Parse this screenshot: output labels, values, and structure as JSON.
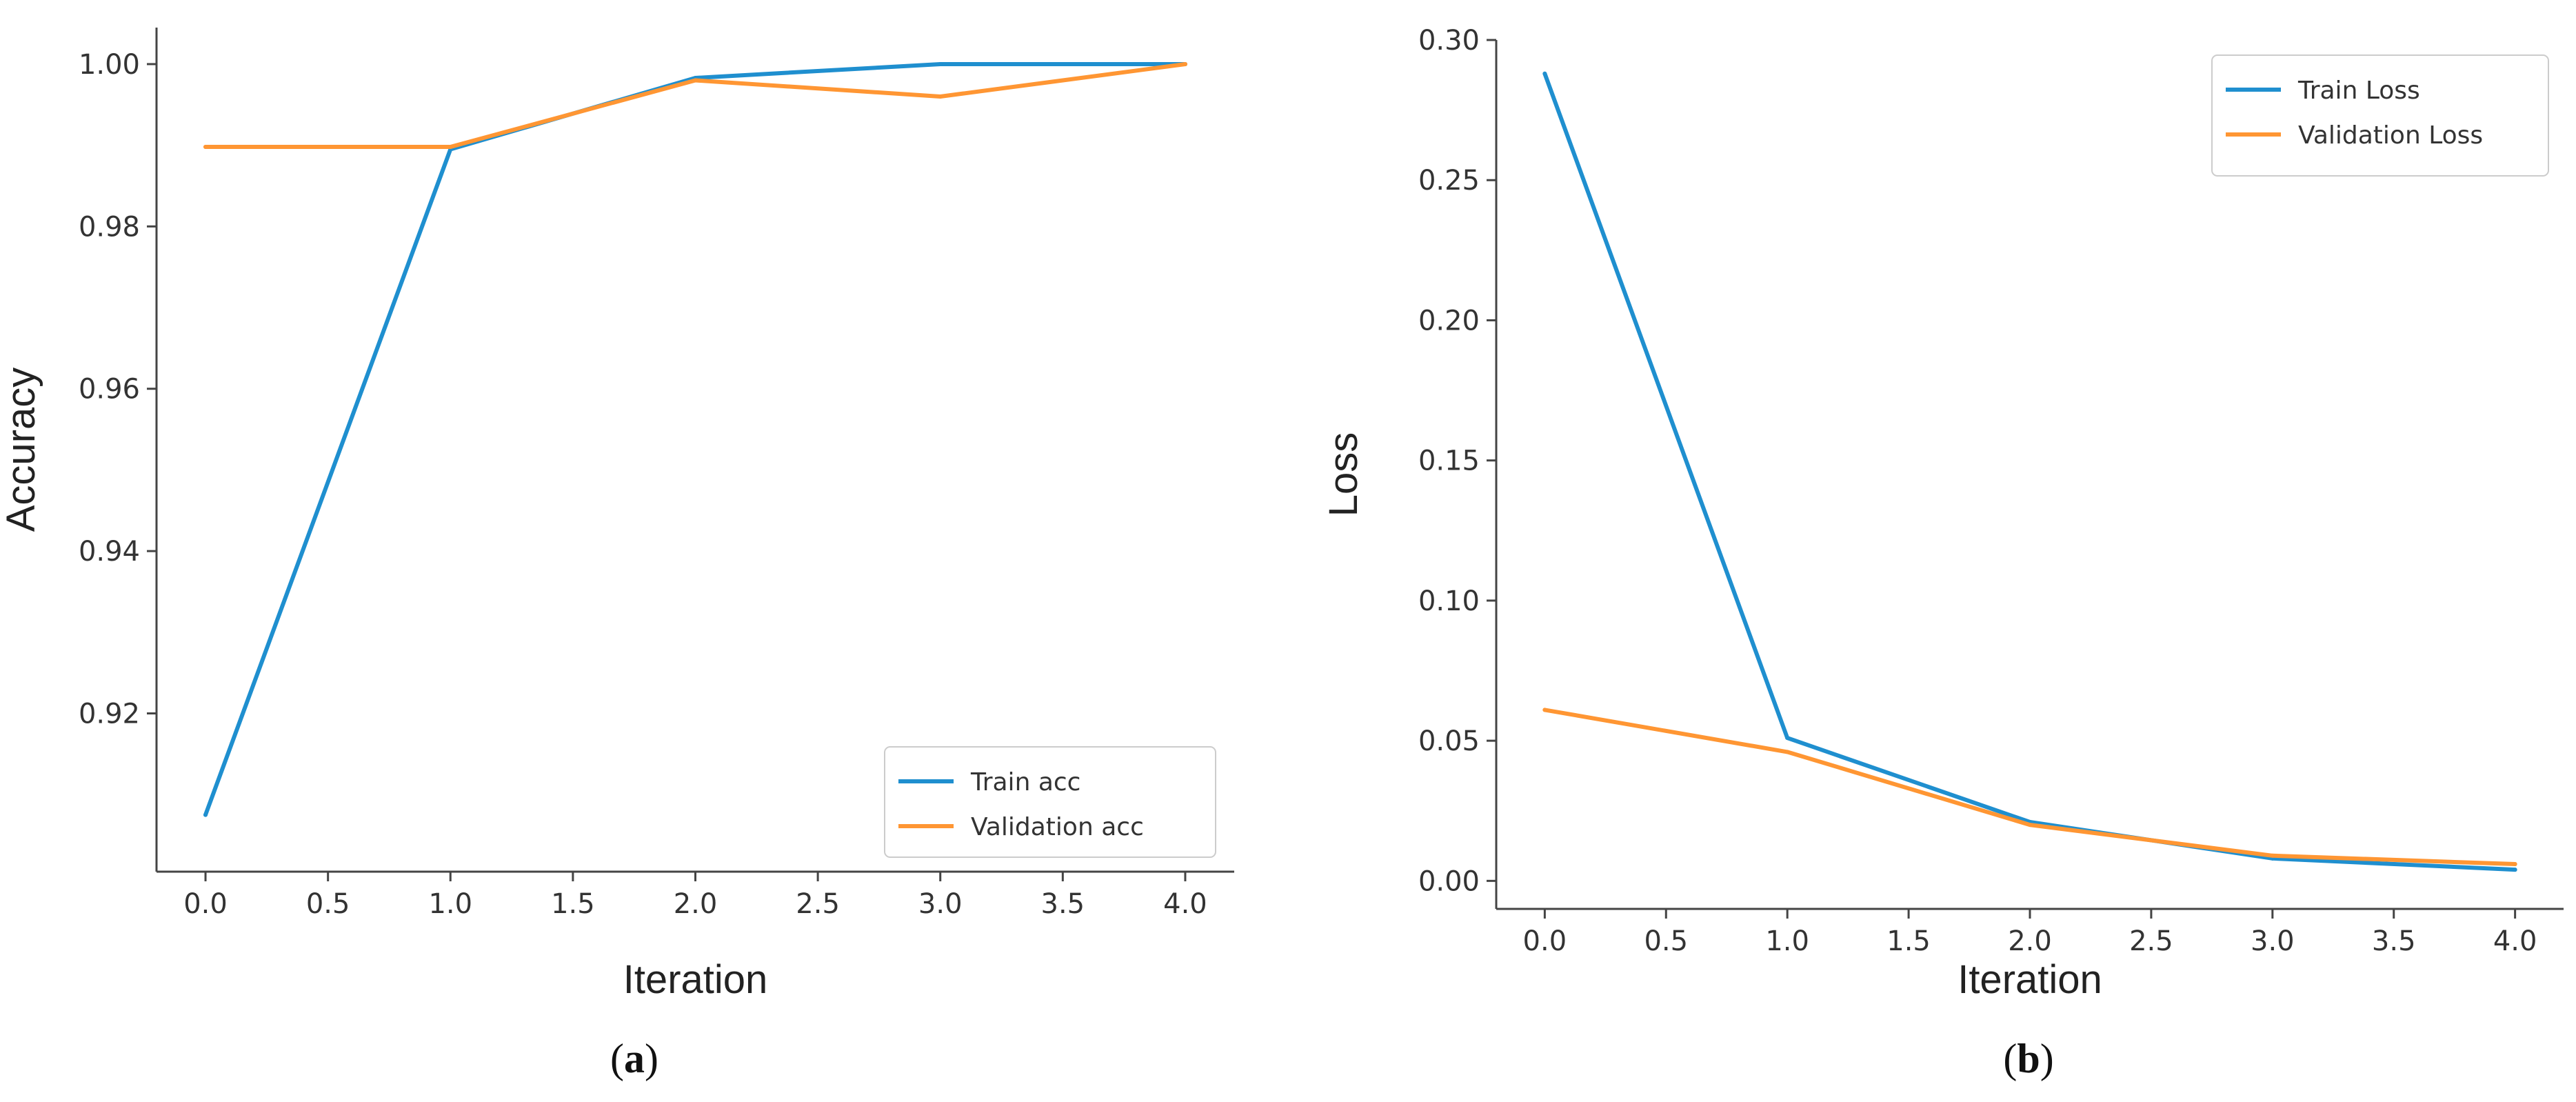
{
  "chart_data": [
    {
      "type": "line",
      "caption_letter": "a",
      "xlabel": "Iteration",
      "ylabel": "Accuracy",
      "xlim": [
        -0.2,
        4.2
      ],
      "ylim": [
        0.9005,
        1.0045
      ],
      "xticks": [
        "0.0",
        "0.5",
        "1.0",
        "1.5",
        "2.0",
        "2.5",
        "3.0",
        "3.5",
        "4.0"
      ],
      "yticks": [
        "0.92",
        "0.94",
        "0.96",
        "0.98",
        "1.00"
      ],
      "x": [
        0,
        1,
        2,
        3,
        4
      ],
      "legend_position": "lower-right",
      "series": [
        {
          "name": "Train acc",
          "color": "#1f8fcf",
          "values": [
            0.9075,
            0.9895,
            0.9983,
            1.0,
            1.0
          ]
        },
        {
          "name": "Validation acc",
          "color": "#ff9633",
          "values": [
            0.9898,
            0.9898,
            0.998,
            0.996,
            1.0
          ]
        }
      ]
    },
    {
      "type": "line",
      "caption_letter": "b",
      "xlabel": "Iteration",
      "ylabel": "Loss",
      "xlim": [
        -0.2,
        4.2
      ],
      "ylim": [
        -0.01,
        0.3
      ],
      "xticks": [
        "0.0",
        "0.5",
        "1.0",
        "1.5",
        "2.0",
        "2.5",
        "3.0",
        "3.5",
        "4.0"
      ],
      "yticks": [
        "0.00",
        "0.05",
        "0.10",
        "0.15",
        "0.20",
        "0.25",
        "0.30"
      ],
      "x": [
        0,
        1,
        2,
        3,
        4
      ],
      "legend_position": "top-right",
      "series": [
        {
          "name": "Train Loss",
          "color": "#1f8fcf",
          "values": [
            0.288,
            0.051,
            0.021,
            0.008,
            0.004
          ]
        },
        {
          "name": "Validation Loss",
          "color": "#ff9633",
          "values": [
            0.061,
            0.046,
            0.02,
            0.009,
            0.006
          ]
        }
      ]
    }
  ]
}
